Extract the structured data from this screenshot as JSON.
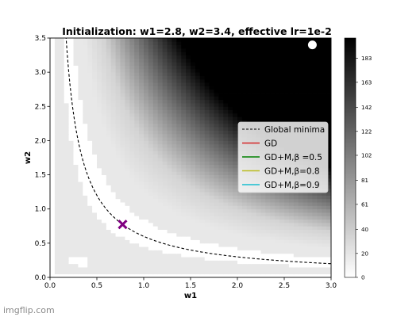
{
  "watermark": "imgflip.com",
  "chart_data": {
    "type": "heatmap",
    "title": "Initialization: w1=2.8, w2=3.4, effective lr=1e-2",
    "xlabel": "w1",
    "ylabel": "w2",
    "xlim": [
      0.0,
      3.0
    ],
    "ylim": [
      0.0,
      3.5
    ],
    "x_ticks": [
      "0.0",
      "0.5",
      "1.0",
      "1.5",
      "2.0",
      "2.5",
      "3.0"
    ],
    "y_ticks": [
      "0.0",
      "0.5",
      "1.0",
      "1.5",
      "2.0",
      "2.5",
      "3.0",
      "3.5"
    ],
    "grid": false,
    "colormap": "gray_r",
    "colorbar": {
      "range": [
        0,
        200
      ],
      "ticks": [
        "0",
        "20",
        "40",
        "61",
        "81",
        "102",
        "122",
        "142",
        "163",
        "183"
      ]
    },
    "global_minima_curve": "w1*w2 = 0.6",
    "markers": [
      {
        "name": "start",
        "x": 2.8,
        "y": 3.4,
        "shape": "circle",
        "color": "#ffffff"
      },
      {
        "name": "minimum",
        "x": 0.775,
        "y": 0.775,
        "shape": "x",
        "color": "#800080"
      }
    ],
    "legend": {
      "position": "center-right",
      "entries": [
        {
          "label": "Global minima",
          "color": "#000000",
          "style": "dashed"
        },
        {
          "label": "GD",
          "color": "#d62728",
          "style": "solid"
        },
        {
          "label": "GD+M,β =0.5",
          "color": "#008000",
          "style": "solid"
        },
        {
          "label": "GD+M,β=0.8",
          "color": "#bcbd22",
          "style": "solid"
        },
        {
          "label": "GD+M,β=0.9",
          "color": "#17becf",
          "style": "solid"
        }
      ]
    }
  }
}
